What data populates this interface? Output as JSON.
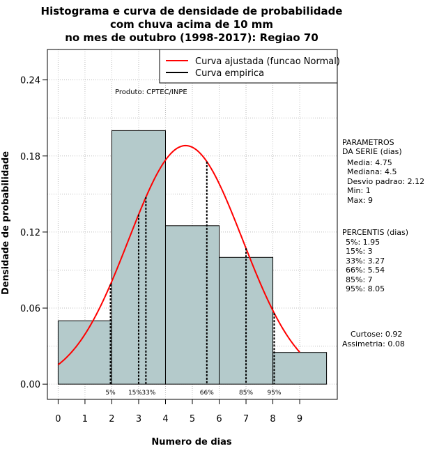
{
  "chart_data": {
    "type": "bar",
    "title": [
      "Histograma e curva de densidade de probabilidade",
      "com chuva acima de 10 mm",
      "no mes de outubro (1998-2017): Regiao 70"
    ],
    "xlabel": "Numero de dias",
    "ylabel": "Densidade de probabilidade",
    "xlim": [
      -0.4,
      10.4
    ],
    "ylim": [
      -0.012,
      0.264
    ],
    "x_ticks": [
      "0",
      "1",
      "2",
      "3",
      "4",
      "5",
      "6",
      "7",
      "8",
      "9"
    ],
    "y_ticks": [
      "0.00",
      "0.06",
      "0.12",
      "0.18",
      "0.24"
    ],
    "grid": true,
    "bins": [
      {
        "start": 0,
        "end": 2,
        "density": 0.05
      },
      {
        "start": 2,
        "end": 4,
        "density": 0.2
      },
      {
        "start": 4,
        "end": 6,
        "density": 0.125
      },
      {
        "start": 6,
        "end": 8,
        "density": 0.1
      },
      {
        "start": 8,
        "end": 10,
        "density": 0.025
      }
    ],
    "bar_color": "#b4cacb",
    "curve": {
      "name": "Curva ajustada (funcao Normal)",
      "color": "#ff0000",
      "mean": 4.75,
      "sd": 2.12,
      "x_range": [
        0,
        9
      ]
    },
    "legend": {
      "position": "top-right",
      "entries": [
        {
          "label": "Curva ajustada (funcao Normal)",
          "color": "#ff0000"
        },
        {
          "label": "Curva empirica",
          "color": "#000000"
        }
      ]
    },
    "percentiles": [
      {
        "label": "5%",
        "value": 1.95
      },
      {
        "label": "15%",
        "value": 3
      },
      {
        "label": "33%",
        "value": 3.27
      },
      {
        "label": "66%",
        "value": 5.54
      },
      {
        "label": "85%",
        "value": 7
      },
      {
        "label": "95%",
        "value": 8.05
      }
    ],
    "product_note": "Produto: CPTEC/INPE"
  },
  "side_panel": {
    "params_header_1": "PARAMETROS",
    "params_header_2": "DA SERIE (dias)",
    "media": "Media: 4.75",
    "mediana": "Mediana: 4.5",
    "desvio": "Desvio padrao: 2.12",
    "min": "Min: 1",
    "max": "Max: 9",
    "percentis_header": "PERCENTIS (dias)",
    "p5": "5%: 1.95",
    "p15": "15%: 3",
    "p33": "33%: 3.27",
    "p66": "66%: 5.54",
    "p85": "85%: 7",
    "p95": "95%: 8.05",
    "curtose": "Curtose: 0.92",
    "assimetria": "Assimetria: 0.08"
  }
}
